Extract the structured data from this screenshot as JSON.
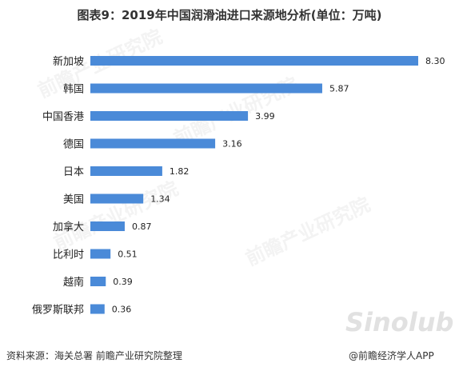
{
  "chart_data": {
    "type": "bar",
    "orientation": "horizontal",
    "title": "图表9：2019年中国润滑油进口来源地分析(单位：万吨)",
    "categories": [
      "新加坡",
      "韩国",
      "中国香港",
      "德国",
      "日本",
      "美国",
      "加拿大",
      "比利时",
      "越南",
      "俄罗斯联邦"
    ],
    "values": [
      8.3,
      5.87,
      3.99,
      3.16,
      1.82,
      1.34,
      0.87,
      0.51,
      0.39,
      0.36
    ],
    "value_labels": [
      "8.30",
      "5.87",
      "3.99",
      "3.16",
      "1.82",
      "1.34",
      "0.87",
      "0.51",
      "0.39",
      "0.36"
    ],
    "bar_color": "#4a8ad8",
    "xlim": [
      0,
      8.3
    ],
    "grid": false,
    "legend": "none"
  },
  "footer": {
    "source": "资料来源：海关总署 前瞻产业研究院整理",
    "app": "@前瞻经济学人APP"
  },
  "watermark": {
    "text": "前瞻产业研究院",
    "logo": "Sinolub"
  }
}
